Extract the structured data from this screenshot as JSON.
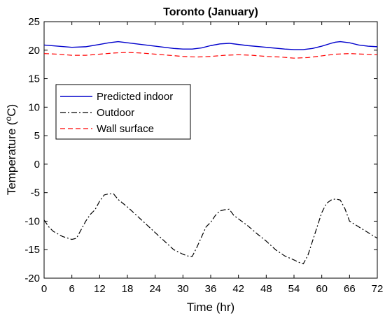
{
  "chart_data": {
    "type": "line",
    "title": "Toronto (January)",
    "xlabel": "Time (hr)",
    "ylabel_main": "Temperature (",
    "ylabel_sup": "o",
    "ylabel_tail": "C)",
    "xlim": [
      0,
      72
    ],
    "ylim": [
      -20,
      25
    ],
    "xticks": [
      0,
      6,
      12,
      18,
      24,
      30,
      36,
      42,
      48,
      54,
      60,
      66,
      72
    ],
    "yticks": [
      -20,
      -15,
      -10,
      -5,
      0,
      5,
      10,
      15,
      20,
      25
    ],
    "ytick_labels": [
      "-20",
      "-15",
      "-10",
      "-5",
      "0",
      "5",
      "10",
      "15",
      "20",
      "25"
    ],
    "xtick_labels": [
      "0",
      "6",
      "12",
      "18",
      "24",
      "30",
      "36",
      "42",
      "48",
      "54",
      "60",
      "66",
      "72"
    ],
    "grid": false,
    "legend_position": "center-left",
    "series": [
      {
        "name": "Predicted indoor",
        "color": "#0000cc",
        "style": "solid",
        "x": [
          0,
          3,
          6,
          9,
          12,
          14,
          16,
          18,
          20,
          24,
          28,
          30,
          32,
          34,
          36,
          38,
          40,
          42,
          44,
          48,
          52,
          54,
          56,
          58,
          60,
          62,
          63,
          64,
          66,
          68,
          70,
          72
        ],
        "y": [
          20.9,
          20.7,
          20.5,
          20.6,
          21.0,
          21.3,
          21.5,
          21.3,
          21.1,
          20.7,
          20.3,
          20.2,
          20.2,
          20.4,
          20.8,
          21.1,
          21.2,
          21.0,
          20.8,
          20.5,
          20.2,
          20.1,
          20.1,
          20.3,
          20.7,
          21.2,
          21.4,
          21.5,
          21.3,
          20.9,
          20.7,
          20.6
        ]
      },
      {
        "name": "Outdoor",
        "color": "#000000",
        "style": "dashdot",
        "x": [
          0,
          1,
          2,
          4,
          6,
          7,
          8,
          9,
          10,
          11,
          12,
          13,
          14,
          15,
          16,
          18,
          20,
          22,
          24,
          26,
          28,
          30,
          31,
          32,
          33,
          34,
          35,
          36,
          37,
          38,
          39,
          40,
          41,
          42,
          44,
          46,
          48,
          50,
          52,
          54,
          55,
          56,
          57,
          58,
          59,
          60,
          61,
          62,
          63,
          64,
          65,
          66,
          68,
          70,
          72
        ],
        "y": [
          -9.8,
          -11.0,
          -11.8,
          -12.7,
          -13.2,
          -13.0,
          -11.5,
          -10.0,
          -8.8,
          -8.0,
          -6.5,
          -5.4,
          -5.2,
          -5.2,
          -6.2,
          -7.5,
          -9.0,
          -10.5,
          -12.0,
          -13.5,
          -15.0,
          -15.8,
          -16.1,
          -16.2,
          -14.6,
          -12.8,
          -11.0,
          -10.2,
          -9.0,
          -8.2,
          -8.0,
          -7.9,
          -9.0,
          -9.6,
          -10.8,
          -12.2,
          -13.5,
          -15.0,
          -16.1,
          -16.8,
          -17.2,
          -17.5,
          -16.0,
          -13.5,
          -11.0,
          -8.5,
          -6.9,
          -6.3,
          -6.1,
          -6.3,
          -7.8,
          -10.0,
          -11.0,
          -12.0,
          -13.0
        ]
      },
      {
        "name": "Wall surface",
        "color": "#ff0000",
        "style": "dashed",
        "x": [
          0,
          3,
          6,
          9,
          12,
          15,
          18,
          21,
          24,
          27,
          30,
          33,
          36,
          39,
          42,
          45,
          48,
          51,
          54,
          57,
          60,
          63,
          66,
          69,
          72
        ],
        "y": [
          19.4,
          19.3,
          19.1,
          19.1,
          19.3,
          19.5,
          19.6,
          19.5,
          19.3,
          19.1,
          18.9,
          18.8,
          18.9,
          19.1,
          19.2,
          19.1,
          18.9,
          18.8,
          18.6,
          18.7,
          19.0,
          19.3,
          19.4,
          19.3,
          19.2
        ]
      }
    ]
  }
}
